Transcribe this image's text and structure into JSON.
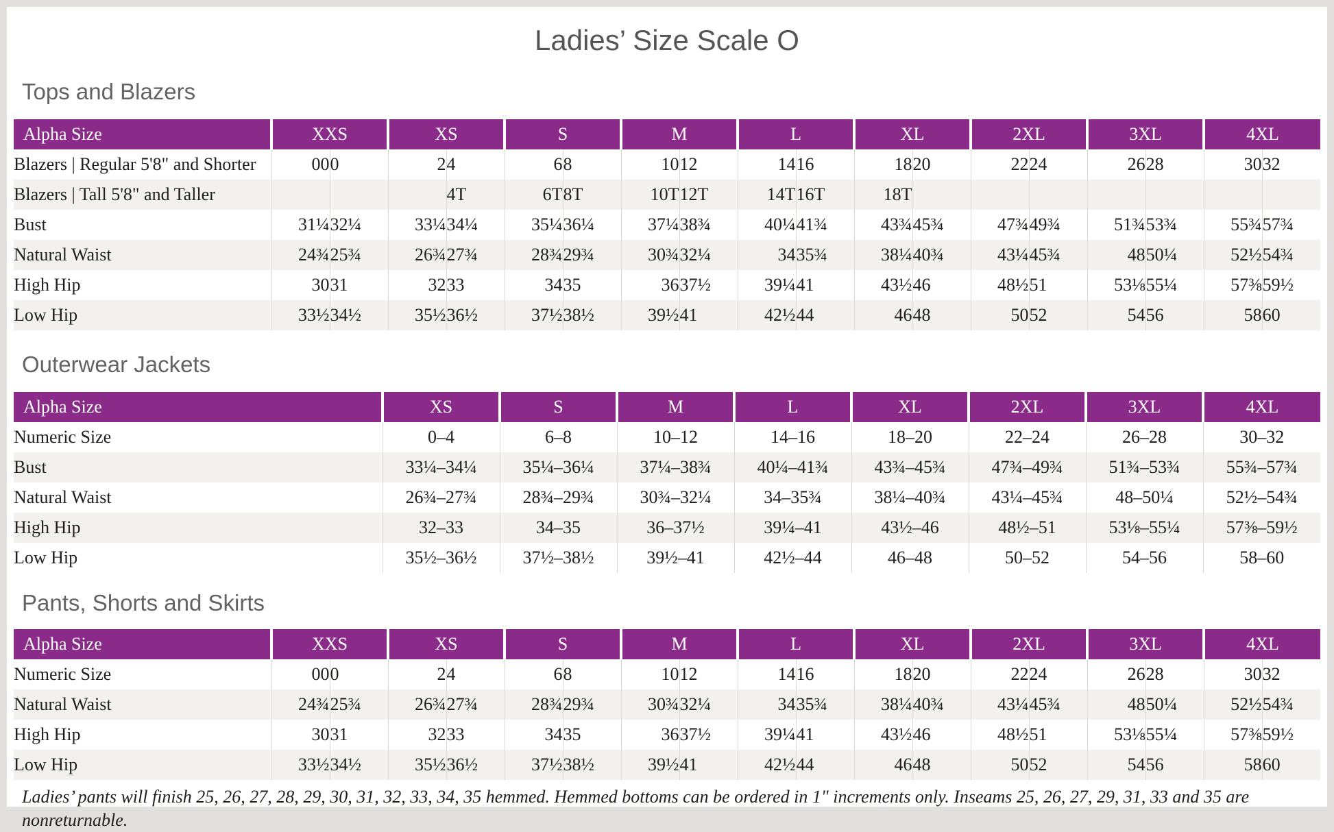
{
  "page": {
    "title": "Ladies’ Size Scale O",
    "footnote": "Ladies’ pants will finish 25, 26, 27, 28, 29, 30, 31, 32, 33, 34, 35 hemmed. Hemmed bottoms can be ordered in 1\" increments only. Inseams 25, 26, 27, 29, 31, 33 and 35 are nonreturnable."
  },
  "colors": {
    "header_purple": "#8b2b89",
    "stripe_gray": "#f2f1ee",
    "heading_gray": "#626366",
    "page_frame": "#e2e0df"
  },
  "tables": [
    {
      "id": "tops-and-blazers",
      "section_title": "Tops and Blazers",
      "type": "paired",
      "header_label": "Alpha Size",
      "sizes": [
        "XXS",
        "XS",
        "S",
        "M",
        "L",
        "XL",
        "2XL",
        "3XL",
        "4XL"
      ],
      "rows": [
        {
          "label": "Blazers | Regular 5'8\" and Shorter",
          "pairs": [
            [
              "00",
              "0"
            ],
            [
              "2",
              "4"
            ],
            [
              "6",
              "8"
            ],
            [
              "10",
              "12"
            ],
            [
              "14",
              "16"
            ],
            [
              "18",
              "20"
            ],
            [
              "22",
              "24"
            ],
            [
              "26",
              "28"
            ],
            [
              "30",
              "32"
            ]
          ]
        },
        {
          "label": "Blazers | Tall 5'8\" and Taller",
          "pairs": [
            [
              "",
              ""
            ],
            [
              "",
              "4T"
            ],
            [
              "6T",
              "8T"
            ],
            [
              "10T",
              "12T"
            ],
            [
              "14T",
              "16T"
            ],
            [
              "18T",
              ""
            ],
            [
              "",
              ""
            ],
            [
              "",
              ""
            ],
            [
              "",
              ""
            ]
          ]
        },
        {
          "label": "Bust",
          "pairs": [
            [
              "31¼",
              "32¼"
            ],
            [
              "33¼",
              "34¼"
            ],
            [
              "35¼",
              "36¼"
            ],
            [
              "37¼",
              "38¾"
            ],
            [
              "40¼",
              "41¾"
            ],
            [
              "43¾",
              "45¾"
            ],
            [
              "47¾",
              "49¾"
            ],
            [
              "51¾",
              "53¾"
            ],
            [
              "55¾",
              "57¾"
            ]
          ]
        },
        {
          "label": "Natural Waist",
          "pairs": [
            [
              "24¾",
              "25¾"
            ],
            [
              "26¾",
              "27¾"
            ],
            [
              "28¾",
              "29¾"
            ],
            [
              "30¾",
              "32¼"
            ],
            [
              "34",
              "35¾"
            ],
            [
              "38¼",
              "40¾"
            ],
            [
              "43¼",
              "45¾"
            ],
            [
              "48",
              "50¼"
            ],
            [
              "52½",
              "54¾"
            ]
          ]
        },
        {
          "label": "High Hip",
          "pairs": [
            [
              "30",
              "31"
            ],
            [
              "32",
              "33"
            ],
            [
              "34",
              "35"
            ],
            [
              "36",
              "37½"
            ],
            [
              "39¼",
              "41"
            ],
            [
              "43½",
              "46"
            ],
            [
              "48½",
              "51"
            ],
            [
              "53⅛",
              "55¼"
            ],
            [
              "57⅜",
              "59½"
            ]
          ]
        },
        {
          "label": "Low Hip",
          "pairs": [
            [
              "33½",
              "34½"
            ],
            [
              "35½",
              "36½"
            ],
            [
              "37½",
              "38½"
            ],
            [
              "39½",
              "41"
            ],
            [
              "42½",
              "44"
            ],
            [
              "46",
              "48"
            ],
            [
              "50",
              "52"
            ],
            [
              "54",
              "56"
            ],
            [
              "58",
              "60"
            ]
          ]
        }
      ]
    },
    {
      "id": "outerwear-jackets",
      "section_title": "Outerwear Jackets",
      "type": "single",
      "header_label": "Alpha Size",
      "sizes": [
        "XS",
        "S",
        "M",
        "L",
        "XL",
        "2XL",
        "3XL",
        "4XL"
      ],
      "rows": [
        {
          "label": "Numeric Size",
          "values": [
            "0–4",
            "6–8",
            "10–12",
            "14–16",
            "18–20",
            "22–24",
            "26–28",
            "30–32"
          ]
        },
        {
          "label": "Bust",
          "values": [
            "33¼–34¼",
            "35¼–36¼",
            "37¼–38¾",
            "40¼–41¾",
            "43¾–45¾",
            "47¾–49¾",
            "51¾–53¾",
            "55¾–57¾"
          ]
        },
        {
          "label": "Natural Waist",
          "values": [
            "26¾–27¾",
            "28¾–29¾",
            "30¾–32¼",
            "34–35¾",
            "38¼–40¾",
            "43¼–45¾",
            "48–50¼",
            "52½–54¾"
          ]
        },
        {
          "label": "High Hip",
          "values": [
            "32–33",
            "34–35",
            "36–37½",
            "39¼–41",
            "43½–46",
            "48½–51",
            "53⅛–55¼",
            "57⅜–59½"
          ]
        },
        {
          "label": "Low Hip",
          "values": [
            "35½–36½",
            "37½–38½",
            "39½–41",
            "42½–44",
            "46–48",
            "50–52",
            "54–56",
            "58–60"
          ]
        }
      ]
    },
    {
      "id": "pants-shorts-skirts",
      "section_title": "Pants, Shorts and Skirts",
      "type": "paired",
      "header_label": "Alpha Size",
      "sizes": [
        "XXS",
        "XS",
        "S",
        "M",
        "L",
        "XL",
        "2XL",
        "3XL",
        "4XL"
      ],
      "rows": [
        {
          "label": "Numeric Size",
          "pairs": [
            [
              "00",
              "0"
            ],
            [
              "2",
              "4"
            ],
            [
              "6",
              "8"
            ],
            [
              "10",
              "12"
            ],
            [
              "14",
              "16"
            ],
            [
              "18",
              "20"
            ],
            [
              "22",
              "24"
            ],
            [
              "26",
              "28"
            ],
            [
              "30",
              "32"
            ]
          ]
        },
        {
          "label": "Natural Waist",
          "pairs": [
            [
              "24¾",
              "25¾"
            ],
            [
              "26¾",
              "27¾"
            ],
            [
              "28¾",
              "29¾"
            ],
            [
              "30¾",
              "32¼"
            ],
            [
              "34",
              "35¾"
            ],
            [
              "38¼",
              "40¾"
            ],
            [
              "43¼",
              "45¾"
            ],
            [
              "48",
              "50¼"
            ],
            [
              "52½",
              "54¾"
            ]
          ]
        },
        {
          "label": "High Hip",
          "pairs": [
            [
              "30",
              "31"
            ],
            [
              "32",
              "33"
            ],
            [
              "34",
              "35"
            ],
            [
              "36",
              "37½"
            ],
            [
              "39¼",
              "41"
            ],
            [
              "43½",
              "46"
            ],
            [
              "48½",
              "51"
            ],
            [
              "53⅛",
              "55¼"
            ],
            [
              "57⅜",
              "59½"
            ]
          ]
        },
        {
          "label": "Low Hip",
          "pairs": [
            [
              "33½",
              "34½"
            ],
            [
              "35½",
              "36½"
            ],
            [
              "37½",
              "38½"
            ],
            [
              "39½",
              "41"
            ],
            [
              "42½",
              "44"
            ],
            [
              "46",
              "48"
            ],
            [
              "50",
              "52"
            ],
            [
              "54",
              "56"
            ],
            [
              "58",
              "60"
            ]
          ]
        }
      ]
    }
  ]
}
